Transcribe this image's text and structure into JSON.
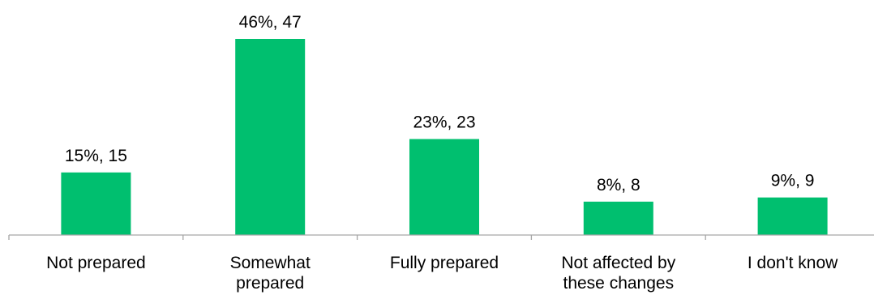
{
  "chart_data": {
    "type": "bar",
    "categories": [
      [
        "Not prepared"
      ],
      [
        "Somewhat",
        "prepared"
      ],
      [
        "Fully prepared"
      ],
      [
        "Not affected by",
        "these changes"
      ],
      [
        "I don't know"
      ]
    ],
    "values": [
      15,
      47,
      23,
      8,
      9
    ],
    "data_labels": [
      "15%, 15",
      "46%, 47",
      "23%, 23",
      "8%, 8",
      "9%, 9"
    ],
    "title": "",
    "xlabel": "",
    "ylabel": "",
    "ylim": [
      0,
      47
    ],
    "grid": false,
    "legend": "none",
    "bar_color": "#00BF6F",
    "axis_color": "#A6A6A6"
  }
}
